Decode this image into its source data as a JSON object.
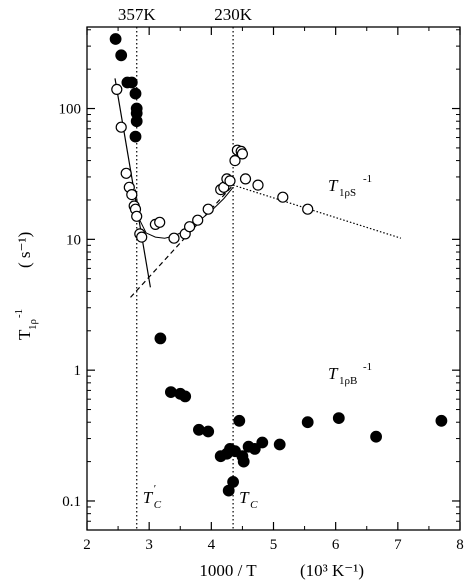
{
  "chart_data": {
    "type": "scatter",
    "xlabel": "1000 / T",
    "xunit": "(10³ K⁻¹)",
    "ylabel": "T",
    "ylabel_sub": "1ρ",
    "ylabel_sup": "-1",
    "yunit": "( s⁻¹)",
    "xlim": [
      2,
      8
    ],
    "ylim": [
      0.06,
      420
    ],
    "yscale": "log",
    "x_ticks": [
      2,
      3,
      4,
      5,
      6,
      7,
      8
    ],
    "x_tick_labels": [
      "2",
      "3",
      "4",
      "5",
      "6",
      "7",
      "8"
    ],
    "y_ticks": [
      0.1,
      1,
      10,
      100
    ],
    "y_tick_labels": [
      "0.1",
      "1",
      "10",
      "100"
    ],
    "grid": false,
    "top_labels": [
      {
        "text": "357K",
        "x": 2.8
      },
      {
        "text": "230K",
        "x": 4.35
      }
    ],
    "vlines": [
      {
        "x": 2.8,
        "style": "dotted"
      },
      {
        "x": 4.35,
        "style": "dotted"
      }
    ],
    "transition_labels": [
      {
        "text": "T",
        "sub": "C",
        "prime": "′",
        "x": 2.8
      },
      {
        "text": "T",
        "sub": "C",
        "prime": "",
        "x": 4.35
      }
    ],
    "series": [
      {
        "name": "T1ρS⁻¹",
        "label_text": "T",
        "label_sub": "1ρS",
        "label_sup": "-1",
        "marker": "open-circle",
        "points": [
          [
            2.48,
            140
          ],
          [
            2.55,
            72
          ],
          [
            2.63,
            32
          ],
          [
            2.68,
            25
          ],
          [
            2.72,
            22
          ],
          [
            2.76,
            18
          ],
          [
            2.78,
            17
          ],
          [
            2.8,
            15
          ],
          [
            2.85,
            11
          ],
          [
            2.88,
            10.4
          ],
          [
            3.1,
            13
          ],
          [
            3.17,
            13.5
          ],
          [
            3.4,
            10.2
          ],
          [
            3.58,
            11
          ],
          [
            3.65,
            12.5
          ],
          [
            3.78,
            14
          ],
          [
            3.95,
            17
          ],
          [
            4.15,
            24
          ],
          [
            4.2,
            25
          ],
          [
            4.25,
            29
          ],
          [
            4.3,
            28
          ],
          [
            4.38,
            40
          ],
          [
            4.42,
            48
          ],
          [
            4.48,
            47
          ],
          [
            4.5,
            45
          ],
          [
            4.55,
            29
          ],
          [
            4.75,
            26
          ],
          [
            5.15,
            21
          ],
          [
            5.55,
            17
          ]
        ]
      },
      {
        "name": "T1ρB⁻¹",
        "label_text": "T",
        "label_sub": "1ρB",
        "label_sup": "-1",
        "marker": "filled-circle",
        "points": [
          [
            2.46,
            340
          ],
          [
            2.55,
            255
          ],
          [
            2.65,
            158
          ],
          [
            2.72,
            158
          ],
          [
            2.78,
            130
          ],
          [
            2.8,
            100
          ],
          [
            2.8,
            92
          ],
          [
            2.8,
            80
          ],
          [
            2.78,
            61
          ],
          [
            3.18,
            1.75
          ],
          [
            3.35,
            0.68
          ],
          [
            3.5,
            0.66
          ],
          [
            3.58,
            0.63
          ],
          [
            3.8,
            0.35
          ],
          [
            3.95,
            0.34
          ],
          [
            4.15,
            0.22
          ],
          [
            4.25,
            0.23
          ],
          [
            4.28,
            0.12
          ],
          [
            4.3,
            0.25
          ],
          [
            4.35,
            0.14
          ],
          [
            4.38,
            0.24
          ],
          [
            4.45,
            0.41
          ],
          [
            4.5,
            0.22
          ],
          [
            4.52,
            0.2
          ],
          [
            4.6,
            0.26
          ],
          [
            4.7,
            0.25
          ],
          [
            4.82,
            0.28
          ],
          [
            5.1,
            0.27
          ],
          [
            5.55,
            0.4
          ],
          [
            6.05,
            0.43
          ],
          [
            6.65,
            0.31
          ],
          [
            7.7,
            0.41
          ]
        ]
      }
    ],
    "fit_lines": [
      {
        "kind": "solid",
        "points": [
          [
            2.45,
            170
          ],
          [
            3.02,
            4.3
          ]
        ]
      },
      {
        "kind": "dashed",
        "points": [
          [
            2.7,
            3.6
          ],
          [
            4.35,
            26
          ]
        ]
      },
      {
        "kind": "dotted",
        "points": [
          [
            4.35,
            26
          ],
          [
            7.05,
            10.2
          ]
        ]
      },
      {
        "kind": "curve",
        "points": [
          [
            2.78,
            24
          ],
          [
            2.85,
            14
          ],
          [
            2.95,
            11.2
          ],
          [
            3.1,
            10.4
          ],
          [
            3.25,
            10.2
          ],
          [
            3.4,
            10.6
          ],
          [
            3.6,
            11.8
          ],
          [
            3.8,
            13.8
          ],
          [
            4.0,
            16.5
          ],
          [
            4.2,
            20.5
          ],
          [
            4.35,
            25
          ]
        ]
      }
    ]
  }
}
